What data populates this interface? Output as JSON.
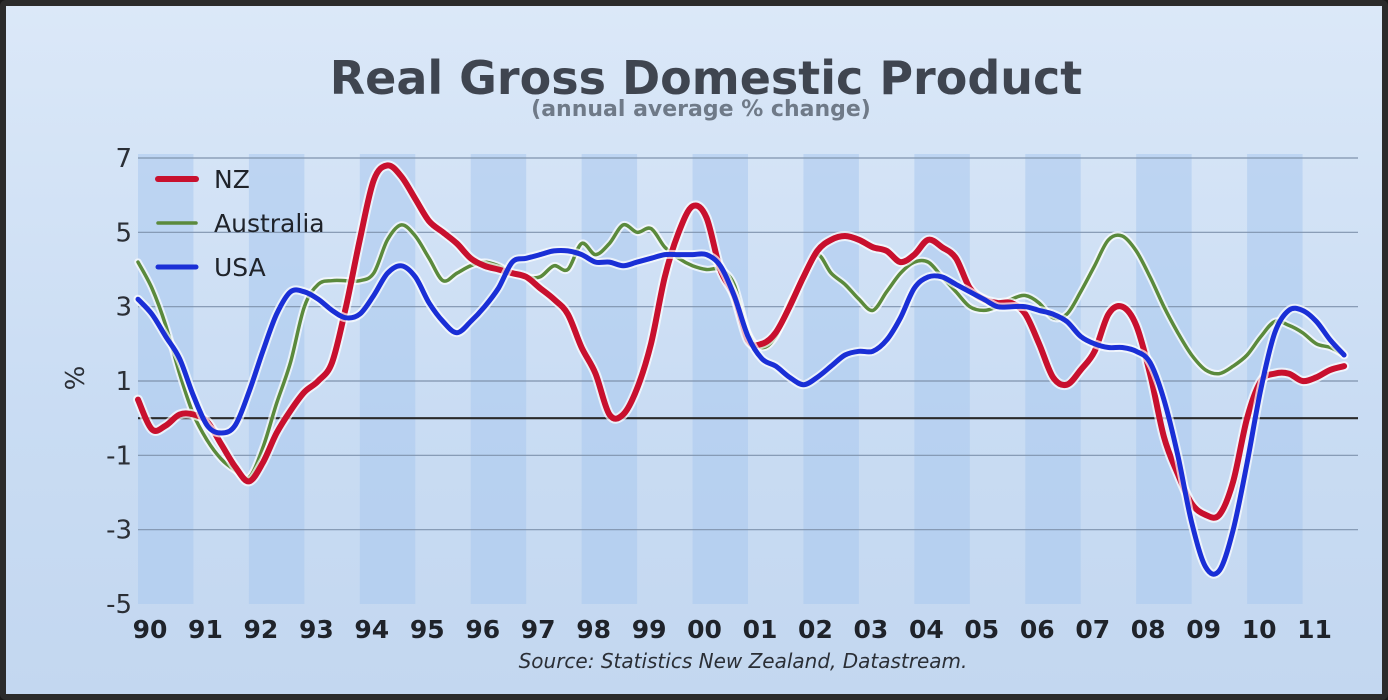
{
  "chart_data": {
    "type": "line",
    "title": "Real Gross Domestic Product",
    "subtitle": "(annual average % change)",
    "ylabel": "%",
    "source": "Source: Statistics New Zealand, Datastream.",
    "ylim": [
      -5,
      7
    ],
    "yticks": [
      "7",
      "5",
      "3",
      "1",
      "-1",
      "-3",
      "-5"
    ],
    "ytick_values": [
      7,
      5,
      3,
      1,
      -1,
      -3,
      -5
    ],
    "xlim": [
      1990,
      2012
    ],
    "xticks": [
      "90",
      "91",
      "92",
      "93",
      "94",
      "95",
      "96",
      "97",
      "98",
      "99",
      "00",
      "01",
      "02",
      "03",
      "04",
      "05",
      "06",
      "07",
      "08",
      "09",
      "10",
      "11"
    ],
    "grid": true,
    "legend_position": "top-left",
    "series": [
      {
        "name": "NZ",
        "color": "#c8102e",
        "points": [
          [
            1990.0,
            0.5
          ],
          [
            1990.25,
            -0.3
          ],
          [
            1990.5,
            -0.2
          ],
          [
            1990.75,
            0.1
          ],
          [
            1991.0,
            0.1
          ],
          [
            1991.25,
            -0.1
          ],
          [
            1991.5,
            -0.7
          ],
          [
            1991.75,
            -1.3
          ],
          [
            1992.0,
            -1.7
          ],
          [
            1992.25,
            -1.2
          ],
          [
            1992.5,
            -0.4
          ],
          [
            1992.75,
            0.2
          ],
          [
            1993.0,
            0.7
          ],
          [
            1993.25,
            1.0
          ],
          [
            1993.5,
            1.5
          ],
          [
            1993.75,
            3.0
          ],
          [
            1994.0,
            4.8
          ],
          [
            1994.25,
            6.4
          ],
          [
            1994.5,
            6.8
          ],
          [
            1994.75,
            6.5
          ],
          [
            1995.0,
            5.9
          ],
          [
            1995.25,
            5.3
          ],
          [
            1995.5,
            5.0
          ],
          [
            1995.75,
            4.7
          ],
          [
            1996.0,
            4.3
          ],
          [
            1996.25,
            4.1
          ],
          [
            1996.5,
            4.0
          ],
          [
            1996.75,
            3.9
          ],
          [
            1997.0,
            3.8
          ],
          [
            1997.25,
            3.5
          ],
          [
            1997.5,
            3.2
          ],
          [
            1997.75,
            2.8
          ],
          [
            1998.0,
            1.9
          ],
          [
            1998.25,
            1.2
          ],
          [
            1998.5,
            0.1
          ],
          [
            1998.75,
            0.1
          ],
          [
            1999.0,
            0.8
          ],
          [
            1999.25,
            2.0
          ],
          [
            1999.5,
            3.8
          ],
          [
            1999.75,
            5.0
          ],
          [
            2000.0,
            5.7
          ],
          [
            2000.25,
            5.4
          ],
          [
            2000.5,
            4.0
          ],
          [
            2000.75,
            3.3
          ],
          [
            2001.0,
            2.1
          ],
          [
            2001.25,
            2.0
          ],
          [
            2001.5,
            2.3
          ],
          [
            2001.75,
            3.0
          ],
          [
            2002.0,
            3.8
          ],
          [
            2002.25,
            4.5
          ],
          [
            2002.5,
            4.8
          ],
          [
            2002.75,
            4.9
          ],
          [
            2003.0,
            4.8
          ],
          [
            2003.25,
            4.6
          ],
          [
            2003.5,
            4.5
          ],
          [
            2003.75,
            4.2
          ],
          [
            2004.0,
            4.4
          ],
          [
            2004.25,
            4.8
          ],
          [
            2004.5,
            4.6
          ],
          [
            2004.75,
            4.3
          ],
          [
            2005.0,
            3.5
          ],
          [
            2005.25,
            3.2
          ],
          [
            2005.5,
            3.1
          ],
          [
            2005.75,
            3.1
          ],
          [
            2006.0,
            2.8
          ],
          [
            2006.25,
            2.0
          ],
          [
            2006.5,
            1.1
          ],
          [
            2006.75,
            0.9
          ],
          [
            2007.0,
            1.3
          ],
          [
            2007.25,
            1.8
          ],
          [
            2007.5,
            2.8
          ],
          [
            2007.75,
            3.0
          ],
          [
            2008.0,
            2.5
          ],
          [
            2008.25,
            1.2
          ],
          [
            2008.5,
            -0.5
          ],
          [
            2008.75,
            -1.5
          ],
          [
            2009.0,
            -2.3
          ],
          [
            2009.25,
            -2.6
          ],
          [
            2009.5,
            -2.6
          ],
          [
            2009.75,
            -1.7
          ],
          [
            2010.0,
            0.0
          ],
          [
            2010.25,
            1.0
          ],
          [
            2010.5,
            1.2
          ],
          [
            2010.75,
            1.2
          ],
          [
            2011.0,
            1.0
          ],
          [
            2011.25,
            1.1
          ],
          [
            2011.5,
            1.3
          ],
          [
            2011.75,
            1.4
          ]
        ]
      },
      {
        "name": "Australia",
        "color": "#5b8a3c",
        "points": [
          [
            1990.0,
            4.2
          ],
          [
            1990.25,
            3.5
          ],
          [
            1990.5,
            2.5
          ],
          [
            1990.75,
            1.2
          ],
          [
            1991.0,
            0.1
          ],
          [
            1991.25,
            -0.6
          ],
          [
            1991.5,
            -1.1
          ],
          [
            1991.75,
            -1.4
          ],
          [
            1992.0,
            -1.6
          ],
          [
            1992.25,
            -0.8
          ],
          [
            1992.5,
            0.4
          ],
          [
            1992.75,
            1.5
          ],
          [
            1993.0,
            3.0
          ],
          [
            1993.25,
            3.6
          ],
          [
            1993.5,
            3.7
          ],
          [
            1993.75,
            3.7
          ],
          [
            1994.0,
            3.7
          ],
          [
            1994.25,
            3.9
          ],
          [
            1994.5,
            4.8
          ],
          [
            1994.75,
            5.2
          ],
          [
            1995.0,
            4.9
          ],
          [
            1995.25,
            4.3
          ],
          [
            1995.5,
            3.7
          ],
          [
            1995.75,
            3.9
          ],
          [
            1996.0,
            4.1
          ],
          [
            1996.25,
            4.2
          ],
          [
            1996.5,
            4.1
          ],
          [
            1996.75,
            3.9
          ],
          [
            1997.0,
            3.8
          ],
          [
            1997.25,
            3.8
          ],
          [
            1997.5,
            4.1
          ],
          [
            1997.75,
            4.0
          ],
          [
            1998.0,
            4.7
          ],
          [
            1998.25,
            4.4
          ],
          [
            1998.5,
            4.7
          ],
          [
            1998.75,
            5.2
          ],
          [
            1999.0,
            5.0
          ],
          [
            1999.25,
            5.1
          ],
          [
            1999.5,
            4.6
          ],
          [
            1999.75,
            4.3
          ],
          [
            2000.0,
            4.1
          ],
          [
            2000.25,
            4.0
          ],
          [
            2000.5,
            4.0
          ],
          [
            2000.75,
            3.6
          ],
          [
            2001.0,
            2.3
          ],
          [
            2001.25,
            1.9
          ],
          [
            2001.5,
            2.2
          ],
          [
            2001.75,
            3.1
          ],
          [
            2002.0,
            3.8
          ],
          [
            2002.25,
            4.4
          ],
          [
            2002.5,
            3.9
          ],
          [
            2002.75,
            3.6
          ],
          [
            2003.0,
            3.2
          ],
          [
            2003.25,
            2.9
          ],
          [
            2003.5,
            3.4
          ],
          [
            2003.75,
            3.9
          ],
          [
            2004.0,
            4.2
          ],
          [
            2004.25,
            4.2
          ],
          [
            2004.5,
            3.8
          ],
          [
            2004.75,
            3.4
          ],
          [
            2005.0,
            3.0
          ],
          [
            2005.25,
            2.9
          ],
          [
            2005.5,
            3.0
          ],
          [
            2005.75,
            3.2
          ],
          [
            2006.0,
            3.3
          ],
          [
            2006.25,
            3.1
          ],
          [
            2006.5,
            2.7
          ],
          [
            2006.75,
            2.8
          ],
          [
            2007.0,
            3.4
          ],
          [
            2007.25,
            4.1
          ],
          [
            2007.5,
            4.8
          ],
          [
            2007.75,
            4.9
          ],
          [
            2008.0,
            4.5
          ],
          [
            2008.25,
            3.8
          ],
          [
            2008.5,
            3.0
          ],
          [
            2008.75,
            2.3
          ],
          [
            2009.0,
            1.7
          ],
          [
            2009.25,
            1.3
          ],
          [
            2009.5,
            1.2
          ],
          [
            2009.75,
            1.4
          ],
          [
            2010.0,
            1.7
          ],
          [
            2010.25,
            2.2
          ],
          [
            2010.5,
            2.6
          ],
          [
            2010.75,
            2.5
          ],
          [
            2011.0,
            2.3
          ],
          [
            2011.25,
            2.0
          ],
          [
            2011.5,
            1.9
          ],
          [
            2011.75,
            1.7
          ]
        ]
      },
      {
        "name": "USA",
        "color": "#1a2fd6",
        "points": [
          [
            1990.0,
            3.2
          ],
          [
            1990.25,
            2.8
          ],
          [
            1990.5,
            2.2
          ],
          [
            1990.75,
            1.6
          ],
          [
            1991.0,
            0.6
          ],
          [
            1991.25,
            -0.2
          ],
          [
            1991.5,
            -0.4
          ],
          [
            1991.75,
            -0.2
          ],
          [
            1992.0,
            0.7
          ],
          [
            1992.25,
            1.8
          ],
          [
            1992.5,
            2.8
          ],
          [
            1992.75,
            3.4
          ],
          [
            1993.0,
            3.4
          ],
          [
            1993.25,
            3.2
          ],
          [
            1993.5,
            2.9
          ],
          [
            1993.75,
            2.7
          ],
          [
            1994.0,
            2.8
          ],
          [
            1994.25,
            3.3
          ],
          [
            1994.5,
            3.9
          ],
          [
            1994.75,
            4.1
          ],
          [
            1995.0,
            3.8
          ],
          [
            1995.25,
            3.1
          ],
          [
            1995.5,
            2.6
          ],
          [
            1995.75,
            2.3
          ],
          [
            1996.0,
            2.6
          ],
          [
            1996.25,
            3.0
          ],
          [
            1996.5,
            3.5
          ],
          [
            1996.75,
            4.2
          ],
          [
            1997.0,
            4.3
          ],
          [
            1997.25,
            4.4
          ],
          [
            1997.5,
            4.5
          ],
          [
            1997.75,
            4.5
          ],
          [
            1998.0,
            4.4
          ],
          [
            1998.25,
            4.2
          ],
          [
            1998.5,
            4.2
          ],
          [
            1998.75,
            4.1
          ],
          [
            1999.0,
            4.2
          ],
          [
            1999.25,
            4.3
          ],
          [
            1999.5,
            4.4
          ],
          [
            1999.75,
            4.4
          ],
          [
            2000.0,
            4.4
          ],
          [
            2000.25,
            4.4
          ],
          [
            2000.5,
            4.1
          ],
          [
            2000.75,
            3.3
          ],
          [
            2001.0,
            2.2
          ],
          [
            2001.25,
            1.6
          ],
          [
            2001.5,
            1.4
          ],
          [
            2001.75,
            1.1
          ],
          [
            2002.0,
            0.9
          ],
          [
            2002.25,
            1.1
          ],
          [
            2002.5,
            1.4
          ],
          [
            2002.75,
            1.7
          ],
          [
            2003.0,
            1.8
          ],
          [
            2003.25,
            1.8
          ],
          [
            2003.5,
            2.1
          ],
          [
            2003.75,
            2.7
          ],
          [
            2004.0,
            3.5
          ],
          [
            2004.25,
            3.8
          ],
          [
            2004.5,
            3.8
          ],
          [
            2004.75,
            3.6
          ],
          [
            2005.0,
            3.4
          ],
          [
            2005.25,
            3.2
          ],
          [
            2005.5,
            3.0
          ],
          [
            2005.75,
            3.0
          ],
          [
            2006.0,
            3.0
          ],
          [
            2006.25,
            2.9
          ],
          [
            2006.5,
            2.8
          ],
          [
            2006.75,
            2.6
          ],
          [
            2007.0,
            2.2
          ],
          [
            2007.25,
            2.0
          ],
          [
            2007.5,
            1.9
          ],
          [
            2007.75,
            1.9
          ],
          [
            2008.0,
            1.8
          ],
          [
            2008.25,
            1.5
          ],
          [
            2008.5,
            0.5
          ],
          [
            2008.75,
            -1.0
          ],
          [
            2009.0,
            -2.8
          ],
          [
            2009.25,
            -4.0
          ],
          [
            2009.5,
            -4.1
          ],
          [
            2009.75,
            -3.0
          ],
          [
            2010.0,
            -1.2
          ],
          [
            2010.25,
            0.8
          ],
          [
            2010.5,
            2.3
          ],
          [
            2010.75,
            2.9
          ],
          [
            2011.0,
            2.9
          ],
          [
            2011.25,
            2.6
          ],
          [
            2011.5,
            2.1
          ],
          [
            2011.75,
            1.7
          ]
        ]
      }
    ]
  }
}
